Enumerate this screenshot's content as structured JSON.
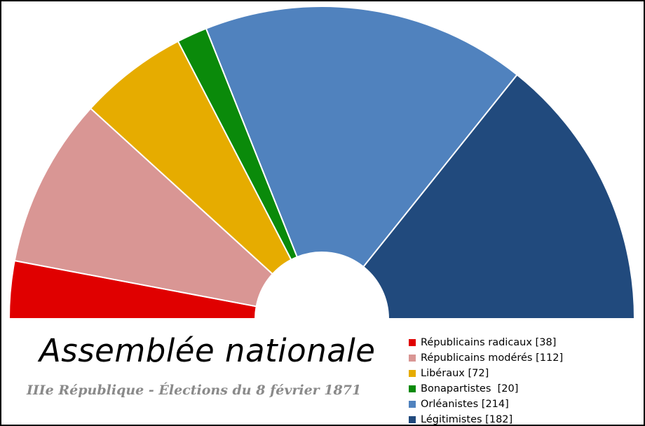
{
  "chart_data": {
    "type": "pie",
    "variant": "parliament-half-donut",
    "title": "Assemblée nationale",
    "subtitle": "IIIe République - Élections du 8 février 1871",
    "legend_position": "bottom-right",
    "series": [
      {
        "name": "Républicains radicaux",
        "value": 38,
        "color": "#e00000"
      },
      {
        "name": "Républicains modérés",
        "value": 112,
        "color": "#d99694"
      },
      {
        "name": "Libéraux",
        "value": 72,
        "color": "#e6ac00"
      },
      {
        "name": "Bonapartistes",
        "value": 20,
        "color": "#0a8a0a"
      },
      {
        "name": "Orléanistes",
        "value": 214,
        "color": "#5082be"
      },
      {
        "name": "Légitimistes",
        "value": 182,
        "color": "#214a7d"
      }
    ]
  }
}
